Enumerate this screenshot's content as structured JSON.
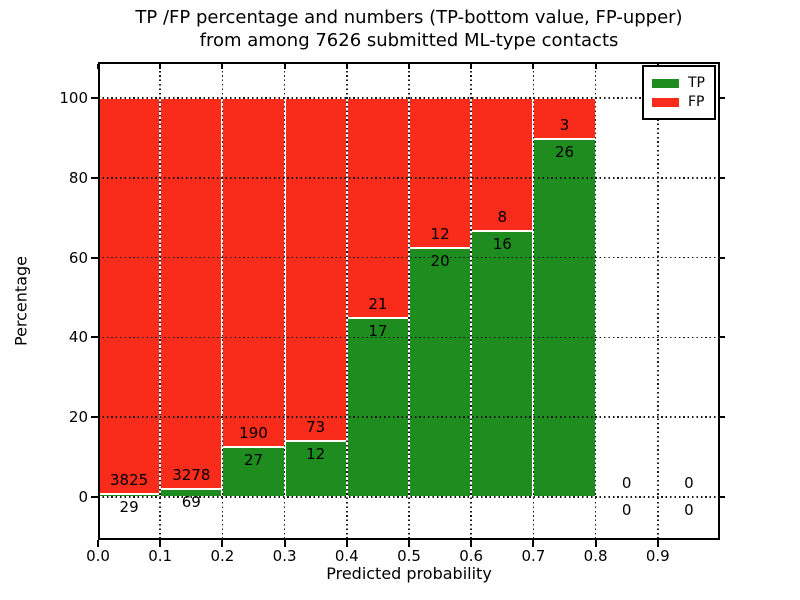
{
  "chart_data": {
    "type": "bar",
    "stacked": true,
    "title_line1": "TP /FP percentage and numbers (TP-bottom value, FP-upper)",
    "title_line2": "from among 7626 submitted ML-type contacts",
    "xlabel": "Predicted probability",
    "ylabel": "Percentage",
    "bin_width": 0.1,
    "xticks": [
      "0.0",
      "0.1",
      "0.2",
      "0.3",
      "0.4",
      "0.5",
      "0.6",
      "0.7",
      "0.8",
      "0.9"
    ],
    "yticks": [
      0,
      20,
      40,
      60,
      80,
      100
    ],
    "xlim": [
      0.0,
      1.0
    ],
    "ylim": [
      -10.8,
      109.2
    ],
    "grid": "dotted",
    "annotation_note": "TP count shown below segment boundary, FP count above",
    "series": [
      {
        "name": "TP",
        "color": "#1f8c1f",
        "counts": [
          29,
          69,
          27,
          12,
          17,
          20,
          16,
          26,
          0,
          0
        ],
        "percent": [
          0.75,
          2.06,
          12.44,
          14.12,
          44.74,
          62.5,
          66.67,
          89.66,
          0,
          0
        ]
      },
      {
        "name": "FP",
        "color": "#f92b1a",
        "counts": [
          3825,
          3278,
          190,
          73,
          21,
          12,
          8,
          3,
          0,
          0
        ],
        "percent": [
          99.25,
          97.94,
          87.56,
          85.88,
          55.26,
          37.5,
          33.33,
          10.34,
          0,
          0
        ]
      }
    ],
    "legend": {
      "position": "upper right",
      "entries": [
        "TP",
        "FP"
      ]
    }
  }
}
